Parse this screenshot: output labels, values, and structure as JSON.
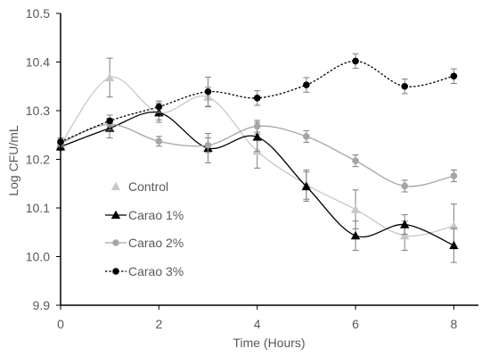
{
  "chart_data": {
    "type": "line",
    "xlabel": "Time (Hours)",
    "ylabel": "Log CFU/mL",
    "xlim": [
      0,
      8.5
    ],
    "ylim": [
      9.9,
      10.5
    ],
    "x_ticks": [
      0,
      2,
      4,
      6,
      8
    ],
    "y_ticks": [
      9.9,
      10.0,
      10.1,
      10.2,
      10.3,
      10.4,
      10.5
    ],
    "y_tick_labels": [
      "9.9",
      "10.0",
      "10.1",
      "10.2",
      "10.3",
      "10.4",
      "10.5"
    ],
    "grid": false,
    "legend_position": "lower-left",
    "x": [
      0,
      1,
      2,
      3,
      4,
      5,
      6,
      7,
      8
    ],
    "series": [
      {
        "name": "Control",
        "values": [
          10.23,
          10.368,
          10.296,
          10.328,
          10.217,
          10.148,
          10.097,
          10.043,
          10.063
        ],
        "errors": [
          0.008,
          0.04,
          0.02,
          0.02,
          0.035,
          0.03,
          0.04,
          0.03,
          0.045
        ],
        "color": "#c8c8c8",
        "marker": "triangle",
        "line_style": "solid"
      },
      {
        "name": "Carao 1%",
        "values": [
          10.226,
          10.264,
          10.296,
          10.223,
          10.246,
          10.144,
          10.043,
          10.066,
          10.023
        ],
        "errors": [
          0.008,
          0.02,
          0.015,
          0.03,
          0.03,
          0.03,
          0.03,
          0.02,
          0.035
        ],
        "color": "#000000",
        "marker": "triangle",
        "line_style": "solid"
      },
      {
        "name": "Carao 2%",
        "values": [
          10.233,
          10.272,
          10.237,
          10.229,
          10.268,
          10.247,
          10.197,
          10.145,
          10.166
        ],
        "errors": [
          0.008,
          0.012,
          0.01,
          0.015,
          0.012,
          0.012,
          0.012,
          0.012,
          0.012
        ],
        "color": "#a6a6a6",
        "marker": "circle",
        "line_style": "solid"
      },
      {
        "name": "Carao 3%",
        "values": [
          10.236,
          10.279,
          10.308,
          10.339,
          10.326,
          10.353,
          10.402,
          10.35,
          10.371
        ],
        "errors": [
          0.008,
          0.012,
          0.012,
          0.03,
          0.015,
          0.015,
          0.015,
          0.015,
          0.015
        ],
        "color": "#000000",
        "marker": "circle",
        "line_style": "dotted"
      }
    ]
  }
}
